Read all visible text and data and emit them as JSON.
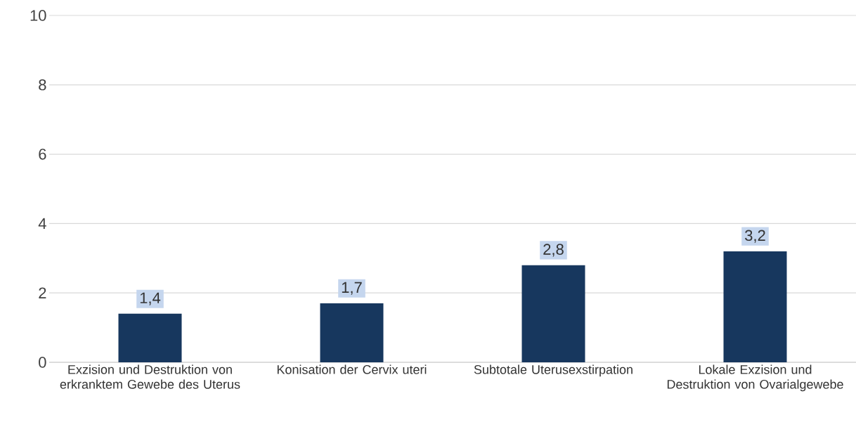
{
  "chart_data": {
    "type": "bar",
    "categories": [
      "Exzision und Destruktion von erkranktem Gewebe des Uterus",
      "Konisation der Cervix uteri",
      "Subtotale Uterusexstirpation",
      "Lokale Exzision und Destruktion von Ovarialgewebe"
    ],
    "values": [
      1.4,
      1.7,
      2.8,
      3.2
    ],
    "value_labels": [
      "1,4",
      "1,7",
      "2,8",
      "3,2"
    ],
    "color": "#17375e",
    "ylim": [
      0,
      10
    ],
    "yticks": [
      0,
      2,
      4,
      6,
      8,
      10
    ],
    "grid": "y"
  }
}
